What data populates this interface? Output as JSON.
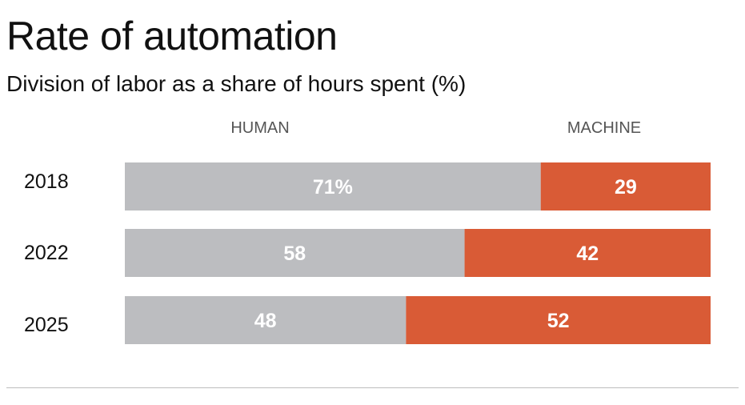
{
  "chart_data": {
    "type": "bar",
    "stacked": true,
    "orientation": "horizontal",
    "title": "Rate of automation",
    "subtitle": "Division of labor as a share of hours spent (%)",
    "categories": [
      "2018",
      "2022",
      "2025"
    ],
    "series": [
      {
        "name": "HUMAN",
        "values": [
          71,
          58,
          48
        ],
        "labels": [
          "71%",
          "58",
          "48"
        ],
        "color": "#bcbdc0"
      },
      {
        "name": "MACHINE",
        "values": [
          29,
          42,
          52
        ],
        "labels": [
          "29",
          "42",
          "52"
        ],
        "color": "#d95b36"
      }
    ],
    "xlim": [
      0,
      100
    ],
    "grid": false,
    "legend": "top",
    "label_color": "#ffffff"
  }
}
